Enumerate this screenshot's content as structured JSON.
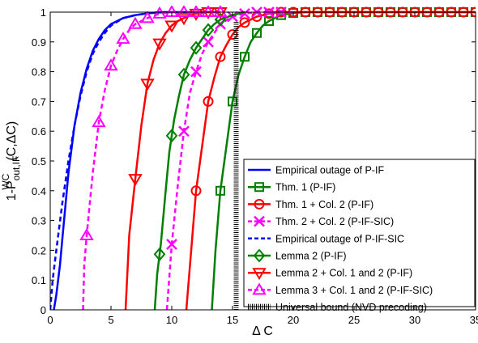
{
  "chart_data": {
    "type": "line",
    "xlabel": "Δ C",
    "ylabel": "1-P",
    "ylabel_sup": "WC",
    "ylabel_sub": "out,IF",
    "ylabel_suffix": "(C,ΔC)",
    "xlim": [
      0,
      35
    ],
    "ylim": [
      0,
      1
    ],
    "x_ticks": [
      0,
      5,
      10,
      15,
      20,
      25,
      30,
      35
    ],
    "y_ticks": [
      0,
      0.1,
      0.2,
      0.3,
      0.4,
      0.5,
      0.6,
      0.7,
      0.8,
      0.9,
      1
    ],
    "x_tick_labels": [
      "0",
      "5",
      "10",
      "15",
      "20",
      "25",
      "30",
      "35"
    ],
    "y_tick_labels": [
      "0",
      "0.1",
      "0.2",
      "0.3",
      "0.4",
      "0.5",
      "0.6",
      "0.7",
      "0.8",
      "0.9",
      "1"
    ],
    "grid": false,
    "legend_position": "lower-right",
    "series": [
      {
        "name": "Empirical outage of P-IF",
        "color": "#0000ff",
        "dash": "solid",
        "marker": "none",
        "x": [
          0.3,
          0.5,
          0.8,
          1.0,
          1.5,
          2.0,
          2.5,
          3.0,
          3.5,
          4.0,
          4.5,
          5.0,
          6.0,
          7.0,
          8.0,
          9.0,
          10.0,
          12.0,
          14.0
        ],
        "y": [
          0.0,
          0.05,
          0.15,
          0.24,
          0.46,
          0.62,
          0.73,
          0.81,
          0.87,
          0.91,
          0.94,
          0.96,
          0.98,
          0.99,
          0.996,
          0.999,
          1.0,
          1.0,
          1.0
        ]
      },
      {
        "name": "Thm. 1 (P-IF)",
        "color": "#007f00",
        "dash": "solid",
        "marker": "square",
        "x": [
          13.3,
          13.6,
          14.0,
          14.5,
          15.0,
          15.5,
          16.0,
          16.5,
          17.0,
          17.5,
          18.0,
          19.0,
          20.0,
          21.0,
          22.0,
          23.0,
          24.0,
          25.0,
          26.0,
          27.0,
          28.0,
          29.0,
          30.0,
          31.0,
          32.0,
          33.0,
          34.0,
          35.0
        ],
        "y": [
          0.0,
          0.2,
          0.4,
          0.55,
          0.7,
          0.79,
          0.85,
          0.9,
          0.93,
          0.955,
          0.97,
          0.99,
          0.997,
          1.0,
          1.0,
          1.0,
          1.0,
          1.0,
          1.0,
          1.0,
          1.0,
          1.0,
          1.0,
          1.0,
          1.0,
          1.0,
          1.0,
          1.0
        ],
        "marker_x": [
          14.0,
          15.0,
          16.0,
          17.0,
          18.0,
          19.0,
          20.0,
          21.0,
          22.0,
          23.0,
          24.0,
          25.0,
          26.0,
          27.0,
          28.0,
          29.0,
          30.0,
          31.0,
          32.0,
          33.0,
          34.0,
          35.0
        ]
      },
      {
        "name": "Thm. 1 + Col. 2 (P-IF)",
        "color": "#ff0000",
        "dash": "solid",
        "marker": "circle",
        "x": [
          11.2,
          11.6,
          12.0,
          12.5,
          13.0,
          13.5,
          14.0,
          14.5,
          15.0,
          15.5,
          16.0,
          17.0,
          18.0,
          19.0,
          20.0,
          22.0,
          24.0,
          26.0,
          28.0,
          30.0,
          32.0,
          35.0
        ],
        "y": [
          0.0,
          0.2,
          0.4,
          0.55,
          0.7,
          0.78,
          0.85,
          0.89,
          0.925,
          0.95,
          0.965,
          0.985,
          0.995,
          1.0,
          1.0,
          1.0,
          1.0,
          1.0,
          1.0,
          1.0,
          1.0,
          1.0
        ],
        "marker_x": [
          12.0,
          13.0,
          14.0,
          15.0,
          16.0,
          17.0,
          18.0,
          19.0,
          20.0,
          21.0,
          22.0,
          23.0,
          24.0,
          25.0,
          26.0,
          27.0,
          28.0,
          29.0,
          30.0,
          31.0,
          32.0,
          33.0,
          34.0,
          35.0
        ]
      },
      {
        "name": "Thm. 2 + Col. 2 (P-IF-SIC)",
        "color": "#ff00ff",
        "dash": "dashed",
        "marker": "x",
        "x": [
          9.6,
          10.0,
          10.5,
          11.0,
          11.5,
          12.0,
          12.5,
          13.0,
          14.0,
          15.0,
          16.0,
          17.0,
          18.0,
          19.0,
          20.0
        ],
        "y": [
          0.0,
          0.22,
          0.42,
          0.6,
          0.73,
          0.8,
          0.86,
          0.9,
          0.96,
          0.985,
          0.995,
          1.0,
          1.0,
          1.0,
          1.0
        ],
        "marker_x": [
          10.0,
          11.0,
          12.0,
          13.0,
          14.0,
          15.0,
          16.0,
          17.0,
          18.0,
          19.0
        ]
      },
      {
        "name": "Empirical outage of P-IF-SIC",
        "color": "#0000ff",
        "dash": "dashed",
        "marker": "none",
        "x": [
          0.0,
          0.2,
          0.5,
          1.0,
          1.5,
          2.0,
          2.5,
          3.0,
          3.5,
          4.0,
          4.5,
          5.0,
          6.0,
          7.0,
          8.0,
          9.0,
          10.0
        ],
        "y": [
          0.0,
          0.1,
          0.2,
          0.36,
          0.5,
          0.62,
          0.72,
          0.8,
          0.86,
          0.9,
          0.93,
          0.955,
          0.98,
          0.99,
          0.996,
          1.0,
          1.0
        ]
      },
      {
        "name": "Lemma 2 (P-IF)",
        "color": "#007f00",
        "dash": "solid",
        "marker": "diamond",
        "x": [
          8.6,
          8.8,
          9.1,
          9.5,
          9.8,
          10.2,
          10.6,
          11.0,
          11.5,
          12.0,
          12.5,
          13.0,
          13.5,
          14.0,
          15.0,
          16.0
        ],
        "y": [
          0.0,
          0.12,
          0.22,
          0.4,
          0.53,
          0.64,
          0.72,
          0.79,
          0.84,
          0.88,
          0.91,
          0.94,
          0.96,
          0.975,
          0.99,
          1.0
        ],
        "marker_x": [
          9.0,
          10.0,
          11.0,
          12.0,
          13.0,
          14.0
        ]
      },
      {
        "name": "Lemma 2 + Col. 1 and 2 (P-IF)",
        "color": "#ff0000",
        "dash": "solid",
        "marker": "triangle-down",
        "x": [
          6.2,
          6.5,
          7.0,
          7.5,
          8.0,
          8.5,
          9.0,
          9.5,
          10.0,
          10.5,
          11.0,
          11.5,
          12.0,
          13.0,
          14.0
        ],
        "y": [
          0.0,
          0.25,
          0.44,
          0.62,
          0.76,
          0.84,
          0.895,
          0.93,
          0.955,
          0.97,
          0.98,
          0.99,
          0.995,
          1.0,
          1.0
        ],
        "marker_x": [
          7.0,
          8.0,
          9.0,
          10.0,
          11.0,
          12.0,
          13.0,
          14.0
        ]
      },
      {
        "name": "Lemma 3 + Col. 1 and 2 (P-IF-SIC)",
        "color": "#ff00ff",
        "dash": "dashed",
        "marker": "triangle-up",
        "x": [
          2.7,
          2.8,
          3.0,
          3.5,
          4.0,
          4.5,
          5.0,
          5.5,
          6.0,
          6.5,
          7.0,
          7.5,
          8.0,
          9.0,
          10.0,
          11.0,
          12.0,
          13.0,
          14.0
        ],
        "y": [
          0.0,
          0.15,
          0.25,
          0.46,
          0.63,
          0.74,
          0.82,
          0.87,
          0.91,
          0.94,
          0.96,
          0.97,
          0.98,
          0.995,
          1.0,
          1.0,
          1.0,
          1.0,
          1.0
        ],
        "marker_x": [
          3.0,
          4.0,
          5.0,
          6.0,
          7.0,
          8.0,
          9.0,
          10.0,
          11.0,
          12.0,
          13.0,
          14.0
        ]
      },
      {
        "name": "Universal bound (NVD precoding)",
        "color": "#000000",
        "dash": "dotted-thick",
        "marker": "none",
        "x": [
          15.3,
          15.3
        ],
        "y": [
          0.0,
          0.97
        ]
      }
    ]
  }
}
